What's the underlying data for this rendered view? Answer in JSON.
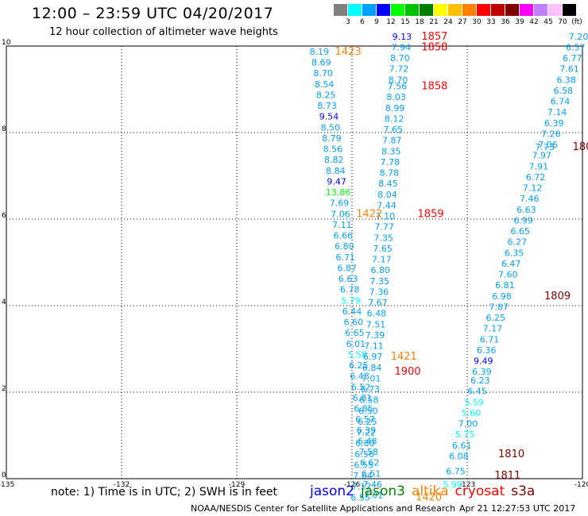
{
  "header": {
    "title": "12:00 – 23:59 UTC 04/20/2017",
    "subtitle": "12 hour collection of altimeter wave heights"
  },
  "legend": {
    "unit": "(ft)",
    "items": [
      {
        "label": "3",
        "color": "#808080"
      },
      {
        "label": "6",
        "color": "#00ffff"
      },
      {
        "label": "9",
        "color": "#00a0ff"
      },
      {
        "label": "12",
        "color": "#0000ff"
      },
      {
        "label": "15",
        "color": "#00ff00"
      },
      {
        "label": "18",
        "color": "#00c000"
      },
      {
        "label": "21",
        "color": "#008000"
      },
      {
        "label": "24",
        "color": "#ffff00"
      },
      {
        "label": "27",
        "color": "#ffc000"
      },
      {
        "label": "30",
        "color": "#ff8000"
      },
      {
        "label": "33",
        "color": "#ff0000"
      },
      {
        "label": "36",
        "color": "#c00000"
      },
      {
        "label": "39",
        "color": "#800000"
      },
      {
        "label": "42",
        "color": "#ff00ff"
      },
      {
        "label": "45",
        "color": "#c080ff"
      },
      {
        "label": "70",
        "color": "#ffc0ff"
      },
      {
        "label": "",
        "color": "#000000"
      }
    ]
  },
  "map": {
    "lon_ticks": [
      "-135",
      "-132",
      "-129",
      "-126",
      "-123",
      "-120"
    ],
    "lat_ticks": [
      "0",
      "2",
      "4",
      "6",
      "8",
      "10"
    ],
    "observations": [
      {
        "t": "8.19",
        "lon": -126.85,
        "lat": 9.8,
        "c": "#00a0ff"
      },
      {
        "t": "8.69",
        "lon": -126.8,
        "lat": 9.55,
        "c": "#00a0ff"
      },
      {
        "t": "8.70",
        "lon": -126.75,
        "lat": 9.3,
        "c": "#00a0ff"
      },
      {
        "t": "8.54",
        "lon": -126.72,
        "lat": 9.05,
        "c": "#00a0ff"
      },
      {
        "t": "8.25",
        "lon": -126.68,
        "lat": 8.8,
        "c": "#00a0ff"
      },
      {
        "t": "8.73",
        "lon": -126.65,
        "lat": 8.55,
        "c": "#00a0ff"
      },
      {
        "t": "9.54",
        "lon": -126.6,
        "lat": 8.3,
        "c": "#0000ff"
      },
      {
        "t": "8.50",
        "lon": -126.56,
        "lat": 8.05,
        "c": "#00a0ff"
      },
      {
        "t": "8.79",
        "lon": -126.53,
        "lat": 7.8,
        "c": "#00a0ff"
      },
      {
        "t": "8.56",
        "lon": -126.5,
        "lat": 7.55,
        "c": "#00a0ff"
      },
      {
        "t": "8.82",
        "lon": -126.47,
        "lat": 7.3,
        "c": "#00a0ff"
      },
      {
        "t": "8.84",
        "lon": -126.43,
        "lat": 7.05,
        "c": "#00a0ff"
      },
      {
        "t": "9.47",
        "lon": -126.4,
        "lat": 6.8,
        "c": "#0000ff"
      },
      {
        "t": "13.86",
        "lon": -126.36,
        "lat": 6.55,
        "c": "#00ff00"
      },
      {
        "t": "7.69",
        "lon": -126.33,
        "lat": 6.3,
        "c": "#00a0ff"
      },
      {
        "t": "7.06",
        "lon": -126.3,
        "lat": 6.05,
        "c": "#00a0ff"
      },
      {
        "t": "7.11",
        "lon": -126.26,
        "lat": 5.8,
        "c": "#00a0ff"
      },
      {
        "t": "6.66",
        "lon": -126.23,
        "lat": 5.55,
        "c": "#00a0ff"
      },
      {
        "t": "6.80",
        "lon": -126.2,
        "lat": 5.3,
        "c": "#00a0ff"
      },
      {
        "t": "6.71",
        "lon": -126.17,
        "lat": 5.05,
        "c": "#00a0ff"
      },
      {
        "t": "6.87",
        "lon": -126.13,
        "lat": 4.8,
        "c": "#00a0ff"
      },
      {
        "t": "6.63",
        "lon": -126.1,
        "lat": 4.55,
        "c": "#00a0ff"
      },
      {
        "t": "6.78",
        "lon": -126.06,
        "lat": 4.3,
        "c": "#00a0ff"
      },
      {
        "t": "5.79",
        "lon": -126.03,
        "lat": 4.05,
        "c": "#00ffff"
      },
      {
        "t": "6.44",
        "lon": -126.0,
        "lat": 3.8,
        "c": "#00a0ff"
      },
      {
        "t": "6.60",
        "lon": -125.96,
        "lat": 3.55,
        "c": "#00a0ff"
      },
      {
        "t": "6.65",
        "lon": -125.93,
        "lat": 3.3,
        "c": "#00a0ff"
      },
      {
        "t": "6.01",
        "lon": -125.9,
        "lat": 3.05,
        "c": "#00a0ff"
      },
      {
        "t": "5.58",
        "lon": -125.86,
        "lat": 2.8,
        "c": "#00ffff"
      },
      {
        "t": "6.25",
        "lon": -125.83,
        "lat": 2.55,
        "c": "#00a0ff"
      },
      {
        "t": "6.48",
        "lon": -125.8,
        "lat": 2.3,
        "c": "#00a0ff"
      },
      {
        "t": "6.52",
        "lon": -125.77,
        "lat": 2.05,
        "c": "#00a0ff"
      },
      {
        "t": "6.81",
        "lon": -125.73,
        "lat": 1.8,
        "c": "#00a0ff"
      },
      {
        "t": "6.85",
        "lon": -125.7,
        "lat": 1.55,
        "c": "#00a0ff"
      },
      {
        "t": "6.57",
        "lon": -125.66,
        "lat": 1.3,
        "c": "#00a0ff"
      },
      {
        "t": "6.39",
        "lon": -125.63,
        "lat": 1.05,
        "c": "#00a0ff"
      },
      {
        "t": "6.48",
        "lon": -125.6,
        "lat": 0.8,
        "c": "#00a0ff"
      },
      {
        "t": "7.58",
        "lon": -125.57,
        "lat": 0.55,
        "c": "#00a0ff"
      },
      {
        "t": "6.62",
        "lon": -125.54,
        "lat": 0.3,
        "c": "#00a0ff"
      },
      {
        "t": "6.51",
        "lon": -125.5,
        "lat": 0.05,
        "c": "#00a0ff"
      },
      {
        "t": "7.46",
        "lon": -125.47,
        "lat": -0.2,
        "c": "#00a0ff"
      },
      {
        "t": "7.01",
        "lon": -125.44,
        "lat": -0.45,
        "c": "#00a0ff"
      },
      {
        "t": "9.13",
        "lon": -124.7,
        "lat": 10.15,
        "c": "#0000ff"
      },
      {
        "t": "7.94",
        "lon": -124.72,
        "lat": 9.9,
        "c": "#00a0ff"
      },
      {
        "t": "8.70",
        "lon": -124.75,
        "lat": 9.65,
        "c": "#00a0ff"
      },
      {
        "t": "7.72",
        "lon": -124.78,
        "lat": 9.4,
        "c": "#00a0ff"
      },
      {
        "t": "8.70",
        "lon": -124.8,
        "lat": 9.15,
        "c": "#00a0ff"
      },
      {
        "t": "7.56",
        "lon": -124.82,
        "lat": 9.0,
        "c": "#00a0ff"
      },
      {
        "t": "8.03",
        "lon": -124.85,
        "lat": 8.75,
        "c": "#00a0ff"
      },
      {
        "t": "8.99",
        "lon": -124.88,
        "lat": 8.5,
        "c": "#00a0ff"
      },
      {
        "t": "8.12",
        "lon": -124.9,
        "lat": 8.25,
        "c": "#00a0ff"
      },
      {
        "t": "7.65",
        "lon": -124.93,
        "lat": 8.0,
        "c": "#00a0ff"
      },
      {
        "t": "7.87",
        "lon": -124.96,
        "lat": 7.75,
        "c": "#00a0ff"
      },
      {
        "t": "8.35",
        "lon": -124.98,
        "lat": 7.5,
        "c": "#00a0ff"
      },
      {
        "t": "7.78",
        "lon": -125.01,
        "lat": 7.25,
        "c": "#00a0ff"
      },
      {
        "t": "8.78",
        "lon": -125.03,
        "lat": 7.0,
        "c": "#00a0ff"
      },
      {
        "t": "8.45",
        "lon": -125.06,
        "lat": 6.75,
        "c": "#00a0ff"
      },
      {
        "t": "8.04",
        "lon": -125.08,
        "lat": 6.5,
        "c": "#00a0ff"
      },
      {
        "t": "7.44",
        "lon": -125.1,
        "lat": 6.25,
        "c": "#00a0ff"
      },
      {
        "t": "7.10",
        "lon": -125.13,
        "lat": 6.0,
        "c": "#00a0ff"
      },
      {
        "t": "7.77",
        "lon": -125.16,
        "lat": 5.75,
        "c": "#00a0ff"
      },
      {
        "t": "7.35",
        "lon": -125.18,
        "lat": 5.5,
        "c": "#00a0ff"
      },
      {
        "t": "7.65",
        "lon": -125.2,
        "lat": 5.25,
        "c": "#00a0ff"
      },
      {
        "t": "7.17",
        "lon": -125.23,
        "lat": 5.0,
        "c": "#00a0ff"
      },
      {
        "t": "6.80",
        "lon": -125.26,
        "lat": 4.75,
        "c": "#00a0ff"
      },
      {
        "t": "7.35",
        "lon": -125.28,
        "lat": 4.5,
        "c": "#00a0ff"
      },
      {
        "t": "7.36",
        "lon": -125.3,
        "lat": 4.25,
        "c": "#00a0ff"
      },
      {
        "t": "7.67",
        "lon": -125.33,
        "lat": 4.0,
        "c": "#00a0ff"
      },
      {
        "t": "6.48",
        "lon": -125.36,
        "lat": 3.75,
        "c": "#00a0ff"
      },
      {
        "t": "7.51",
        "lon": -125.38,
        "lat": 3.5,
        "c": "#00a0ff"
      },
      {
        "t": "7.39",
        "lon": -125.4,
        "lat": 3.25,
        "c": "#00a0ff"
      },
      {
        "t": "7.11",
        "lon": -125.43,
        "lat": 3.0,
        "c": "#00a0ff"
      },
      {
        "t": "6.97",
        "lon": -125.46,
        "lat": 2.75,
        "c": "#00a0ff"
      },
      {
        "t": "6.84",
        "lon": -125.48,
        "lat": 2.5,
        "c": "#00a0ff"
      },
      {
        "t": "7.01",
        "lon": -125.5,
        "lat": 2.25,
        "c": "#00a0ff"
      },
      {
        "t": "6.73",
        "lon": -125.53,
        "lat": 2.0,
        "c": "#00a0ff"
      },
      {
        "t": "6.58",
        "lon": -125.56,
        "lat": 1.75,
        "c": "#00a0ff"
      },
      {
        "t": "6.50",
        "lon": -125.58,
        "lat": 1.5,
        "c": "#00a0ff"
      },
      {
        "t": "6.25",
        "lon": -125.6,
        "lat": 1.25,
        "c": "#00a0ff"
      },
      {
        "t": "7.22",
        "lon": -125.63,
        "lat": 1.0,
        "c": "#00a0ff"
      },
      {
        "t": "6.80",
        "lon": -125.66,
        "lat": 0.75,
        "c": "#00a0ff"
      },
      {
        "t": "6.56",
        "lon": -125.68,
        "lat": 0.5,
        "c": "#00a0ff"
      },
      {
        "t": "6.55",
        "lon": -125.7,
        "lat": 0.25,
        "c": "#00a0ff"
      },
      {
        "t": "7.64",
        "lon": -125.72,
        "lat": 0.0,
        "c": "#00a0ff"
      },
      {
        "t": "7.12",
        "lon": -125.75,
        "lat": -0.25,
        "c": "#00a0ff"
      },
      {
        "t": "6.55",
        "lon": -125.78,
        "lat": -0.5,
        "c": "#00a0ff"
      },
      {
        "t": "7.20",
        "lon": -120.1,
        "lat": 10.15,
        "c": "#00a0ff"
      },
      {
        "t": "6.57",
        "lon": -120.18,
        "lat": 9.9,
        "c": "#00a0ff"
      },
      {
        "t": "6.77",
        "lon": -120.26,
        "lat": 9.65,
        "c": "#00a0ff"
      },
      {
        "t": "7.61",
        "lon": -120.34,
        "lat": 9.4,
        "c": "#00a0ff"
      },
      {
        "t": "6.38",
        "lon": -120.42,
        "lat": 9.15,
        "c": "#00a0ff"
      },
      {
        "t": "6.58",
        "lon": -120.5,
        "lat": 8.9,
        "c": "#00a0ff"
      },
      {
        "t": "6.74",
        "lon": -120.58,
        "lat": 8.65,
        "c": "#00a0ff"
      },
      {
        "t": "7.14",
        "lon": -120.66,
        "lat": 8.4,
        "c": "#00a0ff"
      },
      {
        "t": "6.39",
        "lon": -120.74,
        "lat": 8.15,
        "c": "#00a0ff"
      },
      {
        "t": "7.26",
        "lon": -120.82,
        "lat": 7.9,
        "c": "#00a0ff"
      },
      {
        "t": "7.06",
        "lon": -120.9,
        "lat": 7.65,
        "c": "#00a0ff"
      },
      {
        "t": "7.73",
        "lon": -120.98,
        "lat": 7.6,
        "c": "#00a0ff"
      },
      {
        "t": "7.97",
        "lon": -121.06,
        "lat": 7.4,
        "c": "#00a0ff"
      },
      {
        "t": "7.91",
        "lon": -121.14,
        "lat": 7.15,
        "c": "#00a0ff"
      },
      {
        "t": "6.72",
        "lon": -121.22,
        "lat": 6.9,
        "c": "#00a0ff"
      },
      {
        "t": "7.12",
        "lon": -121.3,
        "lat": 6.65,
        "c": "#00a0ff"
      },
      {
        "t": "7.46",
        "lon": -121.38,
        "lat": 6.4,
        "c": "#00a0ff"
      },
      {
        "t": "6.63",
        "lon": -121.46,
        "lat": 6.15,
        "c": "#00a0ff"
      },
      {
        "t": "6.99",
        "lon": -121.54,
        "lat": 5.9,
        "c": "#00a0ff"
      },
      {
        "t": "6.65",
        "lon": -121.62,
        "lat": 5.65,
        "c": "#00a0ff"
      },
      {
        "t": "6.27",
        "lon": -121.7,
        "lat": 5.4,
        "c": "#00a0ff"
      },
      {
        "t": "6.35",
        "lon": -121.78,
        "lat": 5.15,
        "c": "#00a0ff"
      },
      {
        "t": "6.47",
        "lon": -121.86,
        "lat": 4.9,
        "c": "#00a0ff"
      },
      {
        "t": "7.60",
        "lon": -121.94,
        "lat": 4.65,
        "c": "#00a0ff"
      },
      {
        "t": "6.81",
        "lon": -122.02,
        "lat": 4.4,
        "c": "#00a0ff"
      },
      {
        "t": "6.98",
        "lon": -122.1,
        "lat": 4.15,
        "c": "#00a0ff"
      },
      {
        "t": "7.87",
        "lon": -122.18,
        "lat": 3.9,
        "c": "#00a0ff"
      },
      {
        "t": "6.25",
        "lon": -122.26,
        "lat": 3.65,
        "c": "#00a0ff"
      },
      {
        "t": "7.17",
        "lon": -122.34,
        "lat": 3.4,
        "c": "#00a0ff"
      },
      {
        "t": "6.71",
        "lon": -122.42,
        "lat": 3.15,
        "c": "#00a0ff"
      },
      {
        "t": "6.36",
        "lon": -122.5,
        "lat": 2.9,
        "c": "#00a0ff"
      },
      {
        "t": "9.49",
        "lon": -122.58,
        "lat": 2.65,
        "c": "#0000ff"
      },
      {
        "t": "6.39",
        "lon": -122.62,
        "lat": 2.4,
        "c": "#00a0ff"
      },
      {
        "t": "6.23",
        "lon": -122.66,
        "lat": 2.2,
        "c": "#00a0ff"
      },
      {
        "t": "6.45",
        "lon": -122.74,
        "lat": 1.95,
        "c": "#00a0ff"
      },
      {
        "t": "5.59",
        "lon": -122.82,
        "lat": 1.7,
        "c": "#00ffff"
      },
      {
        "t": "5.60",
        "lon": -122.9,
        "lat": 1.45,
        "c": "#00ffff"
      },
      {
        "t": "7.00",
        "lon": -122.98,
        "lat": 1.2,
        "c": "#00a0ff"
      },
      {
        "t": "5.75",
        "lon": -123.06,
        "lat": 0.95,
        "c": "#00ffff"
      },
      {
        "t": "6.61",
        "lon": -123.14,
        "lat": 0.7,
        "c": "#00a0ff"
      },
      {
        "t": "6.08",
        "lon": -123.22,
        "lat": 0.45,
        "c": "#00a0ff"
      },
      {
        "t": "6.75",
        "lon": -123.3,
        "lat": 0.1,
        "c": "#00a0ff"
      },
      {
        "t": "5.99",
        "lon": -123.38,
        "lat": -0.2,
        "c": "#00ffff"
      }
    ],
    "pass_labels": [
      {
        "t": "1423",
        "lon": -126.1,
        "lat": 9.8,
        "c": "#ff8000"
      },
      {
        "t": "1857",
        "lon": -123.85,
        "lat": 10.15,
        "c": "#ff0000"
      },
      {
        "t": "1858",
        "lon": -123.85,
        "lat": 9.9,
        "c": "#ff0000"
      },
      {
        "t": "1858",
        "lon": -123.85,
        "lat": 9.0,
        "c": "#ff0000"
      },
      {
        "t": "180",
        "lon": -120.0,
        "lat": 7.6,
        "c": "#800000"
      },
      {
        "t": "1422",
        "lon": -125.55,
        "lat": 6.05,
        "c": "#ff8000"
      },
      {
        "t": "1859",
        "lon": -123.95,
        "lat": 6.05,
        "c": "#ff0000"
      },
      {
        "t": "1809",
        "lon": -120.65,
        "lat": 4.15,
        "c": "#800000"
      },
      {
        "t": "1421",
        "lon": -124.65,
        "lat": 2.75,
        "c": "#ff8000"
      },
      {
        "t": "1900",
        "lon": -124.55,
        "lat": 2.4,
        "c": "#ff0000"
      },
      {
        "t": "1810",
        "lon": -121.85,
        "lat": 0.5,
        "c": "#800000"
      },
      {
        "t": "1811",
        "lon": -121.95,
        "lat": 0.0,
        "c": "#800000"
      },
      {
        "t": "1420",
        "lon": -124.0,
        "lat": -0.5,
        "c": "#ff8000"
      }
    ]
  },
  "note": "note: 1) Time is in UTC; 2) SWH is in feet",
  "satellites": [
    {
      "name": "jason2",
      "color": "#0000ff"
    },
    {
      "name": "jason3",
      "color": "#008000"
    },
    {
      "name": "altika",
      "color": "#ff8000"
    },
    {
      "name": "cryosat",
      "color": "#ff0000"
    },
    {
      "name": "s3a",
      "color": "#800000"
    }
  ],
  "footer": "NOAA/NESDIS Center for Satellite Applications and Research",
  "timestamp": "Apr 21 12:27:53 UTC 2017"
}
